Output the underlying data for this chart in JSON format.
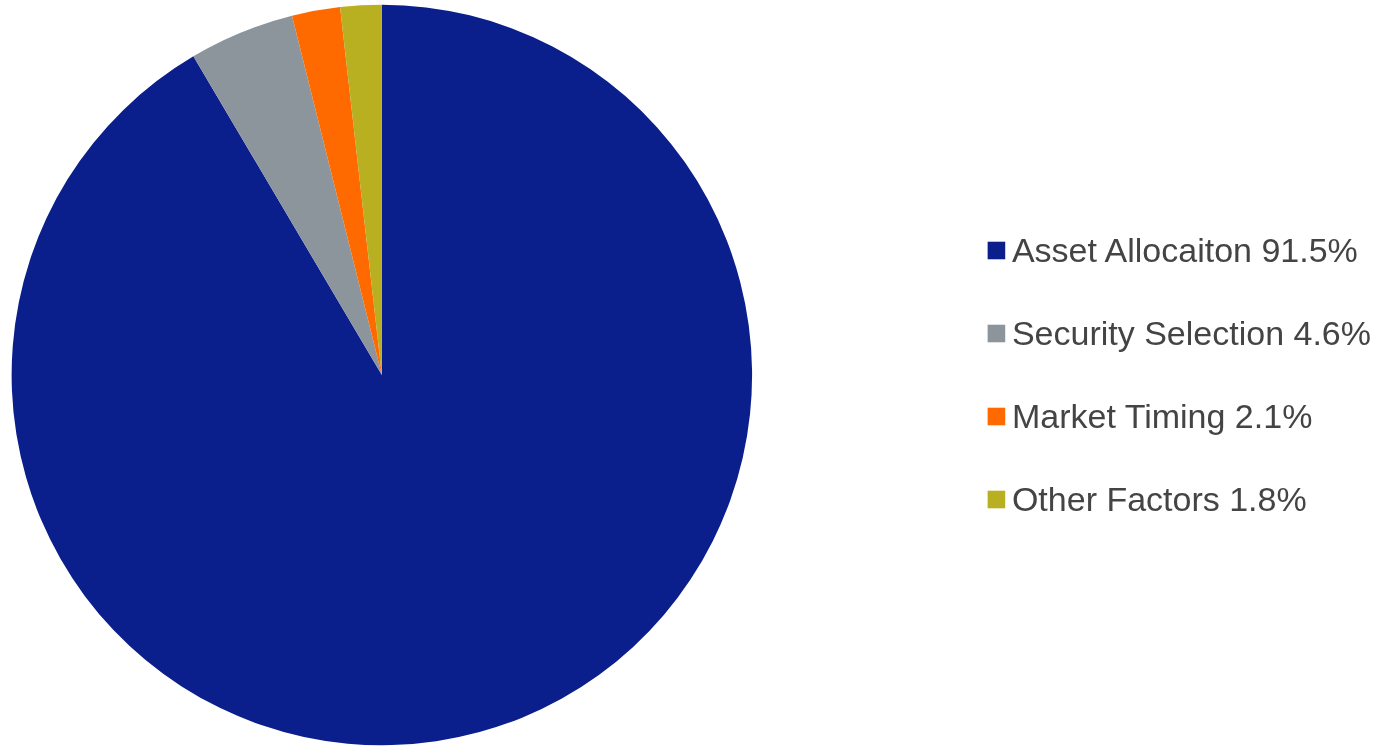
{
  "chart_data": {
    "type": "pie",
    "categories": [
      "Asset Allocaiton 91.5%",
      "Security Selection 4.6%",
      "Market Timing 2.1%",
      "Other Factors 1.8%"
    ],
    "values": [
      91.5,
      4.6,
      2.1,
      1.8
    ],
    "colors": [
      "#0b1f8c",
      "#8c949c",
      "#ff6a00",
      "#b8b020"
    ],
    "legend": "right"
  }
}
